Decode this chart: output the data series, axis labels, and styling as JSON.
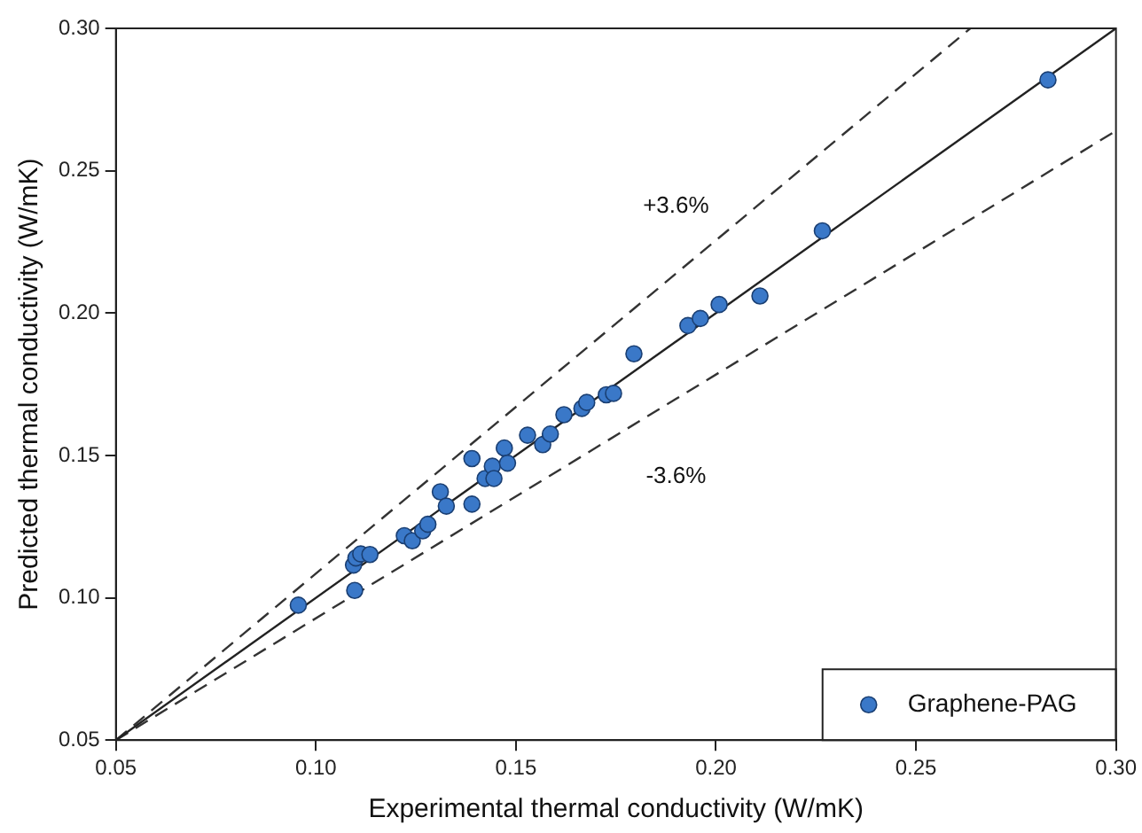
{
  "chart_data": {
    "type": "scatter",
    "xlabel": "Experimental thermal conductivity (W/mK)",
    "ylabel": "Predicted thermal conductivity (W/mK)",
    "xlim": [
      0.05,
      0.3
    ],
    "xticks": [
      {
        "value": 0.05,
        "label": "0.05"
      },
      {
        "value": 0.1,
        "label": "0.10"
      },
      {
        "value": 0.15,
        "label": "0.15"
      },
      {
        "value": 0.2,
        "label": "0.20"
      },
      {
        "value": 0.25,
        "label": "0.25"
      },
      {
        "value": 0.3,
        "label": "0.30"
      }
    ],
    "ylim": [
      0.05,
      0.3
    ],
    "yticks": [
      {
        "value": 0.05,
        "label": "0.05"
      },
      {
        "value": 0.1,
        "label": "0.10"
      },
      {
        "value": 0.15,
        "label": "0.15"
      },
      {
        "value": 0.2,
        "label": "0.20"
      },
      {
        "value": 0.25,
        "label": "0.25"
      },
      {
        "value": 0.3,
        "label": "0.30"
      }
    ],
    "grid": false,
    "legend": "bottom right",
    "series": [
      {
        "name": "Graphene-PAG",
        "marker": "circle",
        "color": "#3a78c8",
        "x": [
          0.0956,
          0.1097,
          0.1094,
          0.11,
          0.1112,
          0.1135,
          0.1221,
          0.1241,
          0.1267,
          0.128,
          0.1311,
          0.1326,
          0.139,
          0.139,
          0.1423,
          0.1441,
          0.1445,
          0.1471,
          0.1479,
          0.1529,
          0.1567,
          0.1586,
          0.162,
          0.1665,
          0.1677,
          0.1726,
          0.1744,
          0.1795,
          0.193,
          0.1961,
          0.2008,
          0.211,
          0.2266,
          0.283
        ],
        "values": [
          0.0974,
          0.1026,
          0.1115,
          0.114,
          0.1154,
          0.1152,
          0.1218,
          0.12,
          0.1235,
          0.1258,
          0.1372,
          0.1322,
          0.1489,
          0.1329,
          0.1419,
          0.1462,
          0.1419,
          0.1526,
          0.1473,
          0.1571,
          0.1538,
          0.1575,
          0.1643,
          0.1665,
          0.1686,
          0.1713,
          0.1718,
          0.1857,
          0.1956,
          0.1981,
          0.203,
          0.206,
          0.2289,
          0.2819
        ]
      },
      {
        "type": "line",
        "marker": "none",
        "line_style": "solid",
        "color": "#222222",
        "x": [
          0.05,
          0.3
        ],
        "values": [
          0.05,
          0.3
        ]
      },
      {
        "type": "line",
        "marker": "none",
        "line_style": "dashed",
        "color": "#333333",
        "x": [
          0.05,
          0.2636
        ],
        "values": [
          0.05,
          0.3
        ]
      },
      {
        "type": "line",
        "marker": "none",
        "line_style": "dashed",
        "color": "#333333",
        "x": [
          0.05,
          0.3
        ],
        "values": [
          0.05,
          0.264
        ]
      }
    ],
    "annotations": [
      "+3.6%",
      "-3.6%"
    ]
  }
}
